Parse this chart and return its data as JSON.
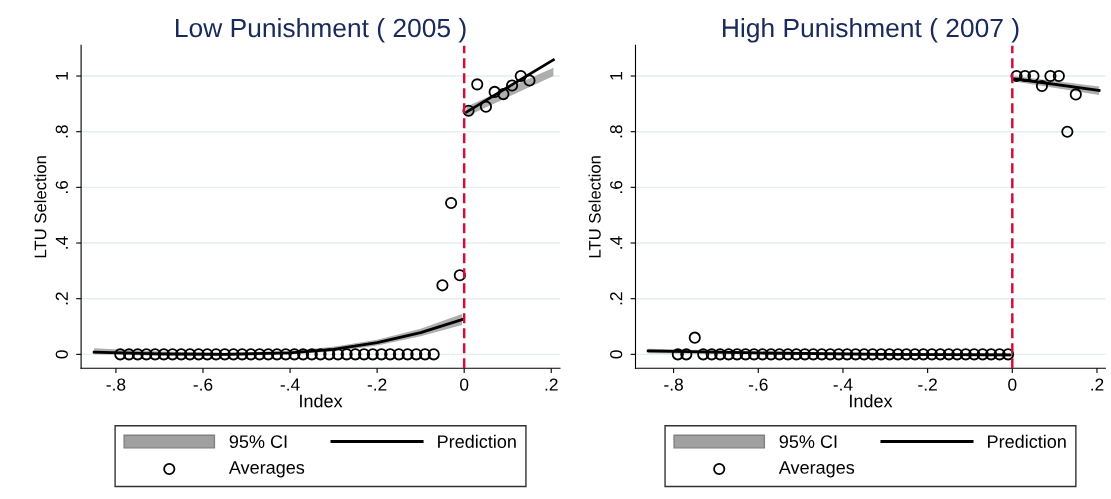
{
  "chart_data": [
    {
      "type": "scatter",
      "title": "Low Punishment ( 2005 )",
      "xlabel": "Index",
      "ylabel": "LTU Selection",
      "grid": "y",
      "legend": "bottom",
      "annotations": [
        "95% CI"
      ],
      "xlim": [
        -0.88,
        0.22
      ],
      "ylim": [
        -0.05,
        1.11
      ],
      "xticks": [
        {
          "value": -0.8,
          "label": "-.8"
        },
        {
          "value": -0.6,
          "label": "-.6"
        },
        {
          "value": -0.4,
          "label": "-.4"
        },
        {
          "value": -0.2,
          "label": "-.2"
        },
        0,
        {
          "value": 0.2,
          "label": ".2"
        }
      ],
      "yticks": [
        0,
        {
          "value": 0.2,
          "label": ".2"
        },
        {
          "value": 0.4,
          "label": ".4"
        },
        {
          "value": 0.6,
          "label": ".6"
        },
        {
          "value": 0.8,
          "label": ".8"
        },
        1
      ],
      "ref_lines": [
        {
          "axis": "x",
          "value": 0,
          "color": "#d0103a",
          "line_style": "dashed"
        }
      ],
      "series": [
        {
          "name": "Prediction",
          "type": "line",
          "color": "#000000",
          "marker": "none",
          "x": [
            -0.85,
            -0.7,
            -0.55,
            -0.4,
            -0.3,
            -0.2,
            -0.1,
            -0.005,
            0,
            0.005,
            0.205
          ],
          "values": [
            0.008,
            0.002,
            0.0,
            0.005,
            0.018,
            0.042,
            0.078,
            0.125,
            null,
            0.87,
            1.058
          ],
          "lower": [
            0.0,
            -0.005,
            -0.006,
            0.0,
            0.01,
            0.032,
            0.065,
            0.105,
            null,
            0.855,
            1.0
          ],
          "upper": [
            0.022,
            0.01,
            0.006,
            0.012,
            0.027,
            0.052,
            0.092,
            0.145,
            null,
            0.89,
            1.03
          ]
        },
        {
          "name": "Averages",
          "type": "scatter",
          "color": "#000000",
          "marker": "circle",
          "x": [
            -0.79,
            -0.77,
            -0.75,
            -0.73,
            -0.71,
            -0.69,
            -0.67,
            -0.65,
            -0.63,
            -0.61,
            -0.59,
            -0.57,
            -0.55,
            -0.53,
            -0.51,
            -0.49,
            -0.47,
            -0.45,
            -0.43,
            -0.41,
            -0.39,
            -0.37,
            -0.35,
            -0.33,
            -0.31,
            -0.29,
            -0.27,
            -0.25,
            -0.23,
            -0.21,
            -0.19,
            -0.17,
            -0.15,
            -0.13,
            -0.11,
            -0.09,
            -0.07,
            -0.05,
            -0.03,
            -0.01,
            0.01,
            0.03,
            0.05,
            0.07,
            0.09,
            0.11,
            0.13,
            0.15
          ],
          "values": [
            0,
            0,
            0,
            0,
            0,
            0,
            0,
            0,
            0,
            0,
            0,
            0,
            0,
            0,
            0,
            0,
            0,
            0,
            0,
            0,
            0,
            0,
            0,
            0,
            0,
            0,
            0,
            0,
            0,
            0,
            0,
            0,
            0,
            0,
            0,
            0,
            0,
            0.248,
            0.544,
            0.284,
            0.875,
            0.97,
            0.89,
            0.943,
            0.935,
            0.966,
            1.0,
            0.984
          ]
        }
      ]
    },
    {
      "type": "scatter",
      "title": "High Punishment ( 2007 )",
      "xlabel": "Index",
      "ylabel": "LTU Selection",
      "grid": "y",
      "legend": "bottom",
      "annotations": [
        "95% CI"
      ],
      "xlim": [
        -0.89,
        0.22
      ],
      "ylim": [
        -0.05,
        1.11
      ],
      "xticks": [
        {
          "value": -0.8,
          "label": "-.8"
        },
        {
          "value": -0.6,
          "label": "-.6"
        },
        {
          "value": -0.4,
          "label": "-.4"
        },
        {
          "value": -0.2,
          "label": "-.2"
        },
        0,
        {
          "value": 0.2,
          "label": ".2"
        }
      ],
      "yticks": [
        0,
        {
          "value": 0.2,
          "label": ".2"
        },
        {
          "value": 0.4,
          "label": ".4"
        },
        {
          "value": 0.6,
          "label": ".6"
        },
        {
          "value": 0.8,
          "label": ".8"
        },
        1
      ],
      "ref_lines": [
        {
          "axis": "x",
          "value": 0,
          "color": "#d0103a",
          "line_style": "dashed"
        }
      ],
      "series": [
        {
          "name": "Prediction",
          "type": "line",
          "color": "#000000",
          "marker": "none",
          "x": [
            -0.86,
            -0.6,
            -0.3,
            -0.005,
            0,
            0.005,
            0.205
          ],
          "values": [
            0.012,
            0.005,
            0.0,
            -0.002,
            null,
            0.99,
            0.948
          ],
          "lower": [
            0.004,
            0.0,
            -0.004,
            -0.008,
            null,
            0.98,
            0.932
          ],
          "upper": [
            0.02,
            0.01,
            0.004,
            0.004,
            null,
            1.0,
            0.962
          ]
        },
        {
          "name": "Averages",
          "type": "scatter",
          "color": "#000000",
          "marker": "circle",
          "x": [
            -0.79,
            -0.77,
            -0.75,
            -0.73,
            -0.71,
            -0.69,
            -0.67,
            -0.65,
            -0.63,
            -0.61,
            -0.59,
            -0.57,
            -0.55,
            -0.53,
            -0.51,
            -0.49,
            -0.47,
            -0.45,
            -0.43,
            -0.41,
            -0.39,
            -0.37,
            -0.35,
            -0.33,
            -0.31,
            -0.29,
            -0.27,
            -0.25,
            -0.23,
            -0.21,
            -0.19,
            -0.17,
            -0.15,
            -0.13,
            -0.11,
            -0.09,
            -0.07,
            -0.05,
            -0.03,
            -0.01,
            0.01,
            0.03,
            0.05,
            0.07,
            0.09,
            0.11,
            0.13,
            0.15
          ],
          "values": [
            0,
            0,
            0.06,
            0,
            0,
            0,
            0,
            0,
            0,
            0,
            0,
            0,
            0,
            0,
            0,
            0,
            0,
            0,
            0,
            0,
            0,
            0,
            0,
            0,
            0,
            0,
            0,
            0,
            0,
            0,
            0,
            0,
            0,
            0,
            0,
            0,
            0,
            0,
            0,
            0,
            1.0,
            1.0,
            1.0,
            0.964,
            1.0,
            1.0,
            0.8,
            0.934
          ]
        }
      ]
    }
  ]
}
